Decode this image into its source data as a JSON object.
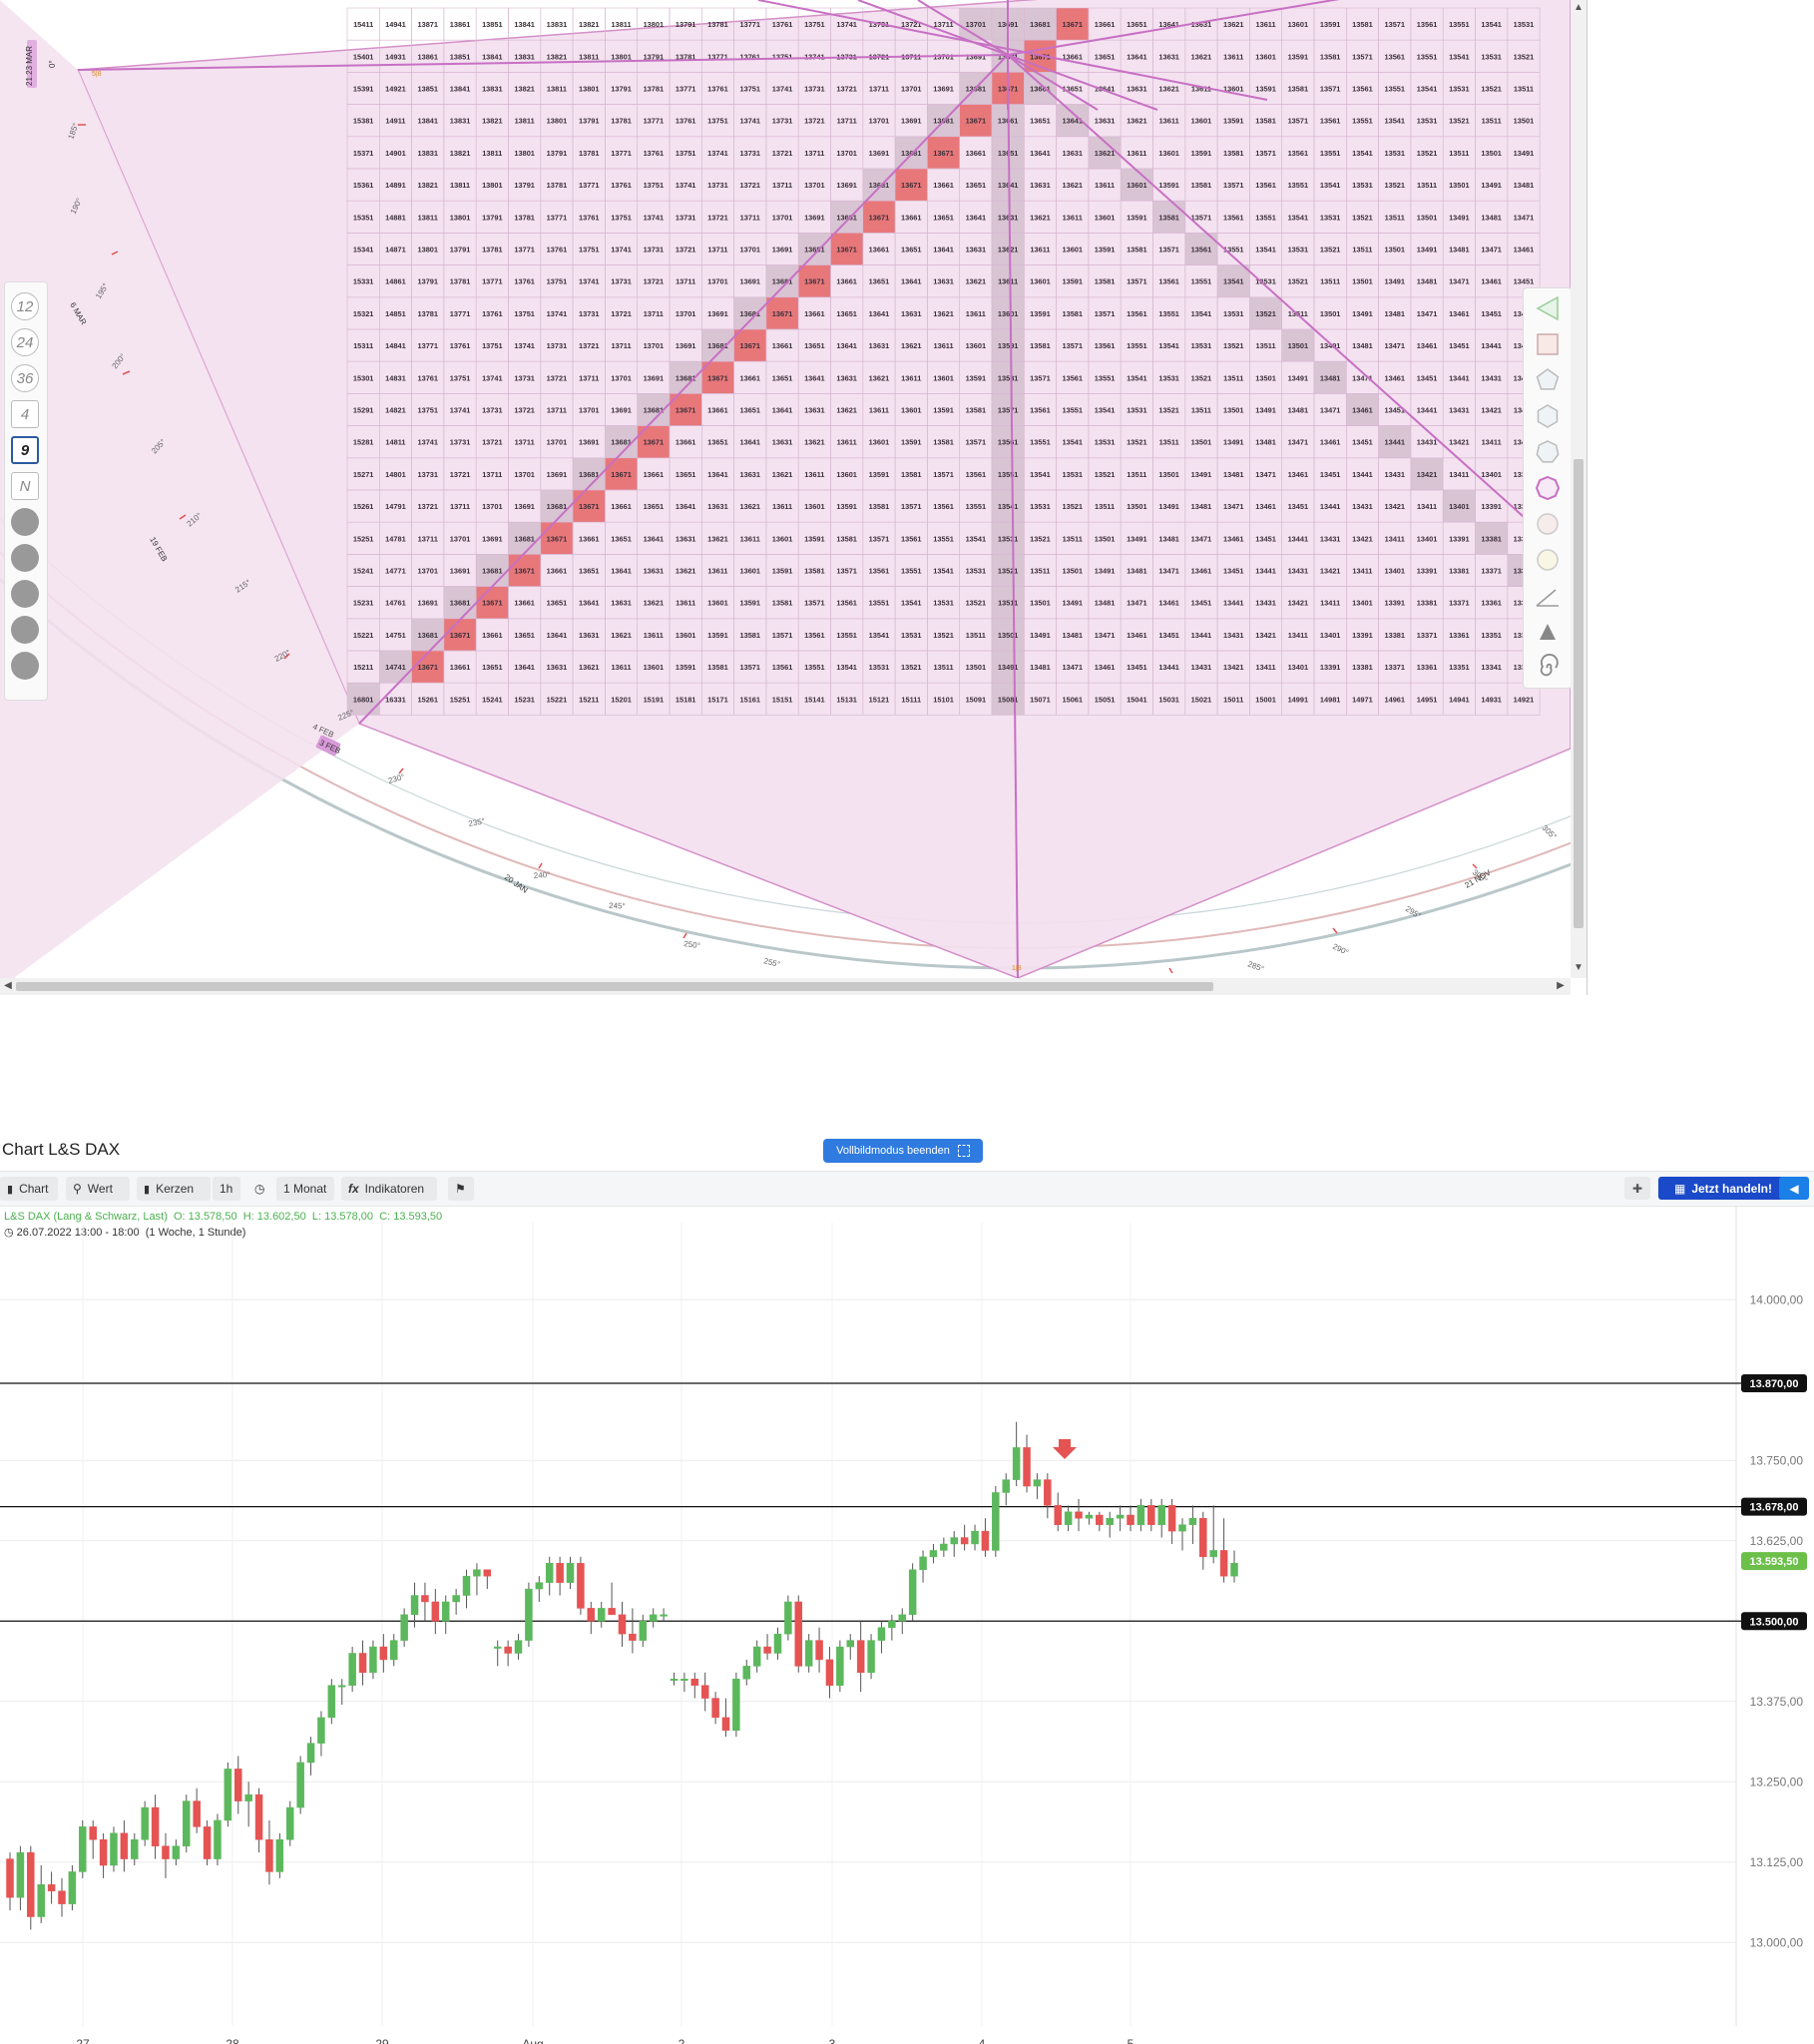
{
  "square_of_nine": {
    "side_markers": {
      "top_left": "0°",
      "left_edge": "21.23 MAR",
      "bottom_left": "4 FEB",
      "bottom_left_date": "3 FEB",
      "orange_left": "5|8",
      "orange_bottom": "1|8"
    },
    "ring_labels": [
      {
        "text": "185°"
      },
      {
        "text": "190°"
      },
      {
        "text": "195°"
      },
      {
        "text": "200°"
      },
      {
        "text": "205°"
      },
      {
        "text": "210°"
      },
      {
        "text": "215°"
      },
      {
        "text": "220°"
      },
      {
        "text": "225°"
      },
      {
        "text": "230°"
      },
      {
        "text": "235°"
      },
      {
        "text": "240°"
      },
      {
        "text": "245°"
      },
      {
        "text": "250°"
      },
      {
        "text": "255°"
      },
      {
        "text": "285°"
      },
      {
        "text": "290°"
      },
      {
        "text": "295°"
      },
      {
        "text": "300°"
      },
      {
        "text": "305°"
      }
    ],
    "date_labels": [
      "6 MAR",
      "19 FEB",
      "20 JAN",
      "21 NOV"
    ],
    "left_tools": [
      "12",
      "24",
      "36",
      "4",
      "9",
      "N"
    ],
    "active_tool": "9",
    "right_tools": [
      "triangle-icon",
      "square-icon",
      "pentagon-icon",
      "hexagon-icon",
      "heptagon-icon",
      "octagon-icon",
      "circle-icon",
      "circle-light-icon",
      "angle-icon",
      "compass-icon",
      "spiral-icon"
    ],
    "grid": {
      "rows_first_col": [
        15411,
        15401,
        15391,
        15381,
        15371,
        15361,
        15351,
        15341,
        15331,
        15321,
        15311,
        15301,
        15291,
        15281,
        15271,
        15261,
        15251,
        15241,
        15231,
        15221,
        15211,
        16801
      ],
      "highlight_value": "13671"
    }
  },
  "chart": {
    "title": "Chart L&S DAX",
    "fullscreen_label": "Vollbildmodus beenden",
    "toolbar": {
      "chart": "Chart",
      "wert": "Wert",
      "kerzen": "Kerzen",
      "interval": "1h",
      "period": "1 Monat",
      "indikatoren": "Indikatoren",
      "trade": "Jetzt handeln!"
    },
    "legend": {
      "instrument": "L&S DAX (Lang & Schwarz, Last)",
      "open": "O: 13.578,50",
      "high": "H: 13.602,50",
      "low": "L: 13.578,00",
      "close": "C: 13.593,50",
      "range": "26.07.2022 13:00 - 18:00",
      "range_note": "(1 Woche, 1 Stunde)"
    },
    "colors": {
      "up": "#5cb85c",
      "down": "#e55353",
      "last_badge": "#6cc04a",
      "level_badge": "#111111"
    }
  },
  "chart_data": {
    "type": "candlestick",
    "x_labels": [
      "27",
      "28",
      "29",
      "Aug",
      "2",
      "3",
      "4",
      "5"
    ],
    "y_ticks": [
      "14.000,00",
      "13.750,00",
      "13.625,00",
      "13.375,00",
      "13.250,00",
      "13.125,00",
      "13.000,00"
    ],
    "ylim": [
      12870,
      14120
    ],
    "horizontal_levels": [
      {
        "value": 13870,
        "label": "13.870,00"
      },
      {
        "value": 13678,
        "label": "13.678,00"
      },
      {
        "value": 13500,
        "label": "13.500,00"
      }
    ],
    "last_price": {
      "value": 13593.5,
      "label": "13.593,50"
    },
    "candles": [
      [
        13130,
        13140,
        13050,
        13070
      ],
      [
        13070,
        13150,
        13050,
        13140
      ],
      [
        13140,
        13150,
        13020,
        13040
      ],
      [
        13040,
        13120,
        13030,
        13090
      ],
      [
        13090,
        13110,
        13060,
        13080
      ],
      [
        13080,
        13100,
        13040,
        13060
      ],
      [
        13060,
        13120,
        13050,
        13110
      ],
      [
        13110,
        13190,
        13100,
        13180
      ],
      [
        13180,
        13190,
        13130,
        13160
      ],
      [
        13160,
        13170,
        13100,
        13120
      ],
      [
        13120,
        13180,
        13110,
        13170
      ],
      [
        13170,
        13190,
        13110,
        13130
      ],
      [
        13130,
        13170,
        13120,
        13160
      ],
      [
        13160,
        13220,
        13150,
        13210
      ],
      [
        13210,
        13230,
        13130,
        13150
      ],
      [
        13150,
        13170,
        13100,
        13130
      ],
      [
        13130,
        13160,
        13120,
        13150
      ],
      [
        13150,
        13230,
        13140,
        13220
      ],
      [
        13220,
        13240,
        13170,
        13180
      ],
      [
        13180,
        13190,
        13120,
        13130
      ],
      [
        13130,
        13200,
        13120,
        13190
      ],
      [
        13190,
        13280,
        13180,
        13270
      ],
      [
        13270,
        13290,
        13200,
        13220
      ],
      [
        13220,
        13250,
        13180,
        13230
      ],
      [
        13230,
        13240,
        13140,
        13160
      ],
      [
        13160,
        13190,
        13090,
        13110
      ],
      [
        13110,
        13170,
        13100,
        13160
      ],
      [
        13160,
        13220,
        13150,
        13210
      ],
      [
        13210,
        13290,
        13200,
        13280
      ],
      [
        13280,
        13320,
        13260,
        13310
      ],
      [
        13310,
        13360,
        13290,
        13350
      ],
      [
        13350,
        13410,
        13340,
        13400
      ],
      [
        13400,
        13410,
        13370,
        13400
      ],
      [
        13400,
        13460,
        13390,
        13450
      ],
      [
        13450,
        13470,
        13400,
        13420
      ],
      [
        13420,
        13470,
        13410,
        13460
      ],
      [
        13460,
        13480,
        13420,
        13440
      ],
      [
        13440,
        13480,
        13430,
        13470
      ],
      [
        13470,
        13520,
        13460,
        13510
      ],
      [
        13510,
        13560,
        13490,
        13540
      ],
      [
        13540,
        13560,
        13500,
        13530
      ],
      [
        13530,
        13550,
        13480,
        13500
      ],
      [
        13500,
        13540,
        13480,
        13530
      ],
      [
        13530,
        13550,
        13510,
        13540
      ],
      [
        13540,
        13580,
        13520,
        13570
      ],
      [
        13570,
        13590,
        13540,
        13580
      ],
      [
        13580,
        13580,
        13550,
        13570
      ],
      [
        13460,
        13470,
        13430,
        13460
      ],
      [
        13460,
        13470,
        13430,
        13450
      ],
      [
        13450,
        13480,
        13440,
        13470
      ],
      [
        13470,
        13560,
        13460,
        13550
      ],
      [
        13550,
        13570,
        13530,
        13560
      ],
      [
        13560,
        13600,
        13540,
        13590
      ],
      [
        13590,
        13600,
        13540,
        13560
      ],
      [
        13560,
        13600,
        13550,
        13590
      ],
      [
        13590,
        13600,
        13510,
        13520
      ],
      [
        13520,
        13530,
        13480,
        13500
      ],
      [
        13500,
        13530,
        13490,
        13520
      ],
      [
        13520,
        13560,
        13510,
        13510
      ],
      [
        13510,
        13530,
        13460,
        13480
      ],
      [
        13480,
        13520,
        13450,
        13470
      ],
      [
        13470,
        13510,
        13460,
        13500
      ],
      [
        13500,
        13520,
        13490,
        13510
      ],
      [
        13510,
        13520,
        13500,
        13510
      ],
      [
        13410,
        13420,
        13400,
        13410
      ],
      [
        13410,
        13420,
        13390,
        13410
      ],
      [
        13410,
        13420,
        13380,
        13400
      ],
      [
        13400,
        13420,
        13360,
        13380
      ],
      [
        13380,
        13390,
        13340,
        13350
      ],
      [
        13350,
        13380,
        13320,
        13330
      ],
      [
        13330,
        13420,
        13320,
        13410
      ],
      [
        13410,
        13440,
        13400,
        13430
      ],
      [
        13430,
        13470,
        13420,
        13460
      ],
      [
        13460,
        13480,
        13440,
        13450
      ],
      [
        13450,
        13490,
        13440,
        13480
      ],
      [
        13480,
        13540,
        13470,
        13530
      ],
      [
        13530,
        13540,
        13420,
        13430
      ],
      [
        13430,
        13480,
        13420,
        13470
      ],
      [
        13470,
        13490,
        13420,
        13440
      ],
      [
        13440,
        13460,
        13380,
        13400
      ],
      [
        13400,
        13470,
        13390,
        13460
      ],
      [
        13460,
        13480,
        13440,
        13470
      ],
      [
        13470,
        13500,
        13390,
        13420
      ],
      [
        13420,
        13480,
        13410,
        13470
      ],
      [
        13470,
        13500,
        13450,
        13490
      ],
      [
        13490,
        13510,
        13470,
        13500
      ],
      [
        13500,
        13520,
        13480,
        13510
      ],
      [
        13510,
        13590,
        13500,
        13580
      ],
      [
        13580,
        13610,
        13560,
        13600
      ],
      [
        13600,
        13620,
        13590,
        13610
      ],
      [
        13610,
        13630,
        13600,
        13620
      ],
      [
        13620,
        13640,
        13600,
        13630
      ],
      [
        13630,
        13650,
        13610,
        13620
      ],
      [
        13620,
        13650,
        13610,
        13640
      ],
      [
        13640,
        13660,
        13600,
        13610
      ],
      [
        13610,
        13710,
        13600,
        13700
      ],
      [
        13700,
        13730,
        13680,
        13720
      ],
      [
        13720,
        13810,
        13710,
        13770
      ],
      [
        13770,
        13790,
        13700,
        13710
      ],
      [
        13710,
        13730,
        13690,
        13720
      ],
      [
        13720,
        13730,
        13660,
        13680
      ],
      [
        13680,
        13700,
        13640,
        13650
      ],
      [
        13650,
        13680,
        13640,
        13670
      ],
      [
        13670,
        13690,
        13640,
        13660
      ],
      [
        13660,
        13670,
        13650,
        13665
      ],
      [
        13665,
        13670,
        13640,
        13650
      ],
      [
        13650,
        13670,
        13630,
        13660
      ],
      [
        13660,
        13680,
        13640,
        13665
      ],
      [
        13665,
        13680,
        13640,
        13650
      ],
      [
        13650,
        13690,
        13640,
        13680
      ],
      [
        13680,
        13690,
        13640,
        13650
      ],
      [
        13650,
        13690,
        13630,
        13680
      ],
      [
        13680,
        13690,
        13620,
        13640
      ],
      [
        13640,
        13660,
        13610,
        13650
      ],
      [
        13650,
        13680,
        13620,
        13660
      ],
      [
        13660,
        13670,
        13580,
        13600
      ],
      [
        13600,
        13680,
        13590,
        13610
      ],
      [
        13610,
        13660,
        13560,
        13570
      ],
      [
        13570,
        13610,
        13560,
        13590
      ]
    ]
  }
}
